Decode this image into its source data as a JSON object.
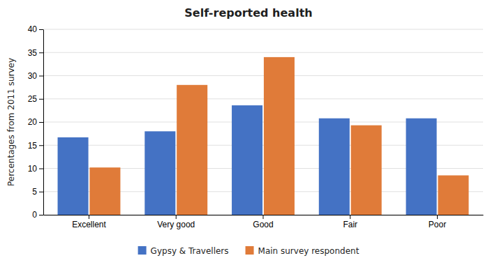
{
  "chart_data": {
    "type": "bar",
    "title": "Self-reported health",
    "ylabel": "Percentages from 2011 survey",
    "categories": [
      "Excellent",
      "Very good",
      "Good",
      "Fair",
      "Poor"
    ],
    "series": [
      {
        "name": "Gypsy & Travellers",
        "color": "#4472C4",
        "values": [
          16.7,
          18.0,
          23.6,
          20.8,
          20.8
        ]
      },
      {
        "name": "Main survey respondent",
        "color": "#E07B39",
        "values": [
          10.2,
          28.0,
          34.0,
          19.3,
          8.5
        ]
      }
    ],
    "ylim": [
      0,
      40
    ],
    "yticks": [
      0,
      5,
      10,
      15,
      20,
      25,
      30,
      35,
      40
    ],
    "grid": true,
    "legend": "bottom"
  }
}
